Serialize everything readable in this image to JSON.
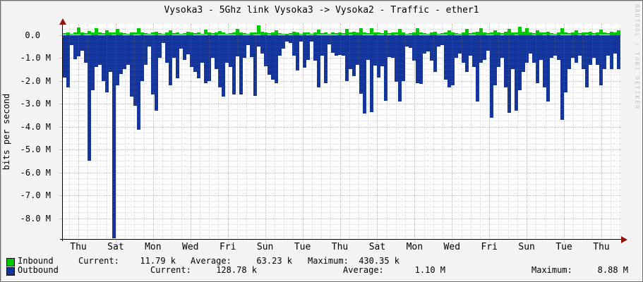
{
  "title": "Vysoka3 - 5Ghz link Vysoka3 -> Vysoka2 - Traffic - ether1",
  "watermark": "RRDTOOL / TOBI OETIKER",
  "colors": {
    "inbound": "#00C800",
    "outbound": "#12349B",
    "background": "#f3f3f3",
    "plot_background": "#ffffff",
    "major_grid": "#e89c9c",
    "minor_grid": "#d4d4d4",
    "axis_arrow": "#92140c"
  },
  "chart_data": {
    "type": "area",
    "title": "Vysoka3 - 5Ghz link Vysoka3 -> Vysoka2 - Traffic - ether1",
    "xlabel": "",
    "ylabel": "bits per second",
    "value_unit": "Mbit/s",
    "ylim": [
      -8.9,
      0.45
    ],
    "grid": true,
    "legend_position": "bottom",
    "x_tick_labels": [
      "Thu",
      "Sat",
      "Mon",
      "Wed",
      "Fri",
      "Sun",
      "Tue",
      "Thu",
      "Sat",
      "Mon",
      "Wed",
      "Fri",
      "Sun",
      "Tue",
      "Thu"
    ],
    "y_tick_labels": [
      "0.0",
      "-1.0 M",
      "-2.0 M",
      "-3.0 M",
      "-4.0 M",
      "-5.0 M",
      "-6.0 M",
      "-7.0 M",
      "-8.0 M"
    ],
    "series": [
      {
        "name": "Inbound",
        "color": "#00C800",
        "values": [
          0.08,
          0.1,
          0.06,
          0.12,
          0.33,
          0.1,
          0.08,
          0.18,
          0.1,
          0.3,
          0.12,
          0.08,
          0.2,
          0.1,
          0.12,
          0.25,
          0.1,
          0.08,
          0.06,
          0.1,
          0.12,
          0.28,
          0.1,
          0.08,
          0.06,
          0.12,
          0.15,
          0.08,
          0.06,
          0.1,
          0.2,
          0.08,
          0.12,
          0.06,
          0.08,
          0.15,
          0.1,
          0.08,
          0.12,
          0.06,
          0.22,
          0.1,
          0.08,
          0.1,
          0.18,
          0.12,
          0.06,
          0.08,
          0.12,
          0.25,
          0.1,
          0.08,
          0.06,
          0.1,
          0.12,
          0.43,
          0.15,
          0.1,
          0.08,
          0.1,
          0.2,
          0.08,
          0.06,
          0.05,
          0.08,
          0.15,
          0.1,
          0.06,
          0.1,
          0.12,
          0.06,
          0.1,
          0.22,
          0.08,
          0.12,
          0.06,
          0.12,
          0.08,
          0.1,
          0.08,
          0.25,
          0.12,
          0.15,
          0.1,
          0.3,
          0.12,
          0.08,
          0.28,
          0.1,
          0.12,
          0.08,
          0.2,
          0.08,
          0.1,
          0.12,
          0.25,
          0.1,
          0.06,
          0.08,
          0.1,
          0.3,
          0.12,
          0.08,
          0.06,
          0.1,
          0.15,
          0.06,
          0.08,
          0.12,
          0.2,
          0.1,
          0.08,
          0.06,
          0.1,
          0.25,
          0.08,
          0.12,
          0.15,
          0.3,
          0.1,
          0.08,
          0.12,
          0.2,
          0.1,
          0.08,
          0.15,
          0.25,
          0.1,
          0.12,
          0.35,
          0.15,
          0.3,
          0.1,
          0.08,
          0.2,
          0.1,
          0.12,
          0.15,
          0.08,
          0.06,
          0.1,
          0.28,
          0.12,
          0.08,
          0.1,
          0.2,
          0.08,
          0.1,
          0.12,
          0.15,
          0.08,
          0.1,
          0.22,
          0.12,
          0.08,
          0.15,
          0.1,
          0.2
        ]
      },
      {
        "name": "Outbound",
        "color": "#12349B",
        "values": [
          -1.85,
          -2.3,
          -0.45,
          -1.05,
          -0.95,
          -0.7,
          -1.2,
          -5.5,
          -2.4,
          -1.4,
          -1.3,
          -2.0,
          -2.5,
          -1.6,
          -8.88,
          -2.2,
          -1.7,
          -1.5,
          -1.3,
          -2.7,
          -3.1,
          -4.15,
          -2.0,
          -1.3,
          -0.5,
          -2.6,
          -3.3,
          -1.0,
          -0.35,
          -1.2,
          -2.2,
          -1.0,
          -1.9,
          -0.6,
          -1.1,
          -0.85,
          -1.4,
          -1.6,
          -1.9,
          -1.2,
          -2.1,
          -2.0,
          -1.0,
          -1.5,
          -2.3,
          -2.7,
          -1.2,
          -1.4,
          -2.6,
          -0.95,
          -2.6,
          -1.0,
          -0.46,
          -0.97,
          -2.67,
          -0.5,
          -0.82,
          -1.38,
          -1.74,
          -1.95,
          -2.1,
          -0.9,
          -0.6,
          -0.3,
          -0.36,
          -0.92,
          -1.54,
          -0.3,
          -1.44,
          -1.08,
          -0.3,
          -1.13,
          -2.3,
          -0.92,
          -2.1,
          -0.4,
          -0.77,
          -0.92,
          -0.87,
          -0.9,
          -2.0,
          -1.5,
          -1.8,
          -1.3,
          -2.56,
          -3.44,
          -1.1,
          -3.38,
          -1.33,
          -1.85,
          -1.38,
          -2.87,
          -0.97,
          -1.0,
          -2.05,
          -2.9,
          -2.0,
          -0.5,
          -0.56,
          -1.13,
          -2.1,
          -2.15,
          -0.82,
          -0.72,
          -1.13,
          -1.6,
          -0.5,
          -0.45,
          -1.95,
          -2.3,
          -2.2,
          -1.0,
          -0.8,
          -1.2,
          -1.6,
          -0.9,
          -1.4,
          -2.9,
          -1.2,
          -1.1,
          -0.7,
          -3.6,
          -2.2,
          -1.4,
          -1.0,
          -2.3,
          -3.4,
          -1.5,
          -3.3,
          -2.4,
          -1.6,
          -1.2,
          -0.8,
          -1.2,
          -2.1,
          -1.1,
          -2.3,
          -2.9,
          -1.0,
          -0.9,
          -1.1,
          -3.7,
          -2.5,
          -1.5,
          -1.0,
          -1.2,
          -0.9,
          -1.5,
          -2.3,
          -1.3,
          -1.0,
          -1.3,
          -2.2,
          -1.5,
          -0.9,
          -1.5,
          -0.8,
          -1.5
        ]
      }
    ]
  },
  "legend": {
    "rows": [
      {
        "name": "Inbound",
        "color": "#00C800",
        "current_label": "Current:",
        "current_value": "11.79 k",
        "average_label": "Average:",
        "average_value": "63.23 k",
        "maximum_label": "Maximum:",
        "maximum_value": "430.35 k"
      },
      {
        "name": "Outbound",
        "color": "#12349B",
        "current_label": "Current:",
        "current_value": "128.78 k",
        "average_label": "Average:",
        "average_value": "1.10 M",
        "maximum_label": "Maximum:",
        "maximum_value": "8.88 M"
      }
    ]
  }
}
